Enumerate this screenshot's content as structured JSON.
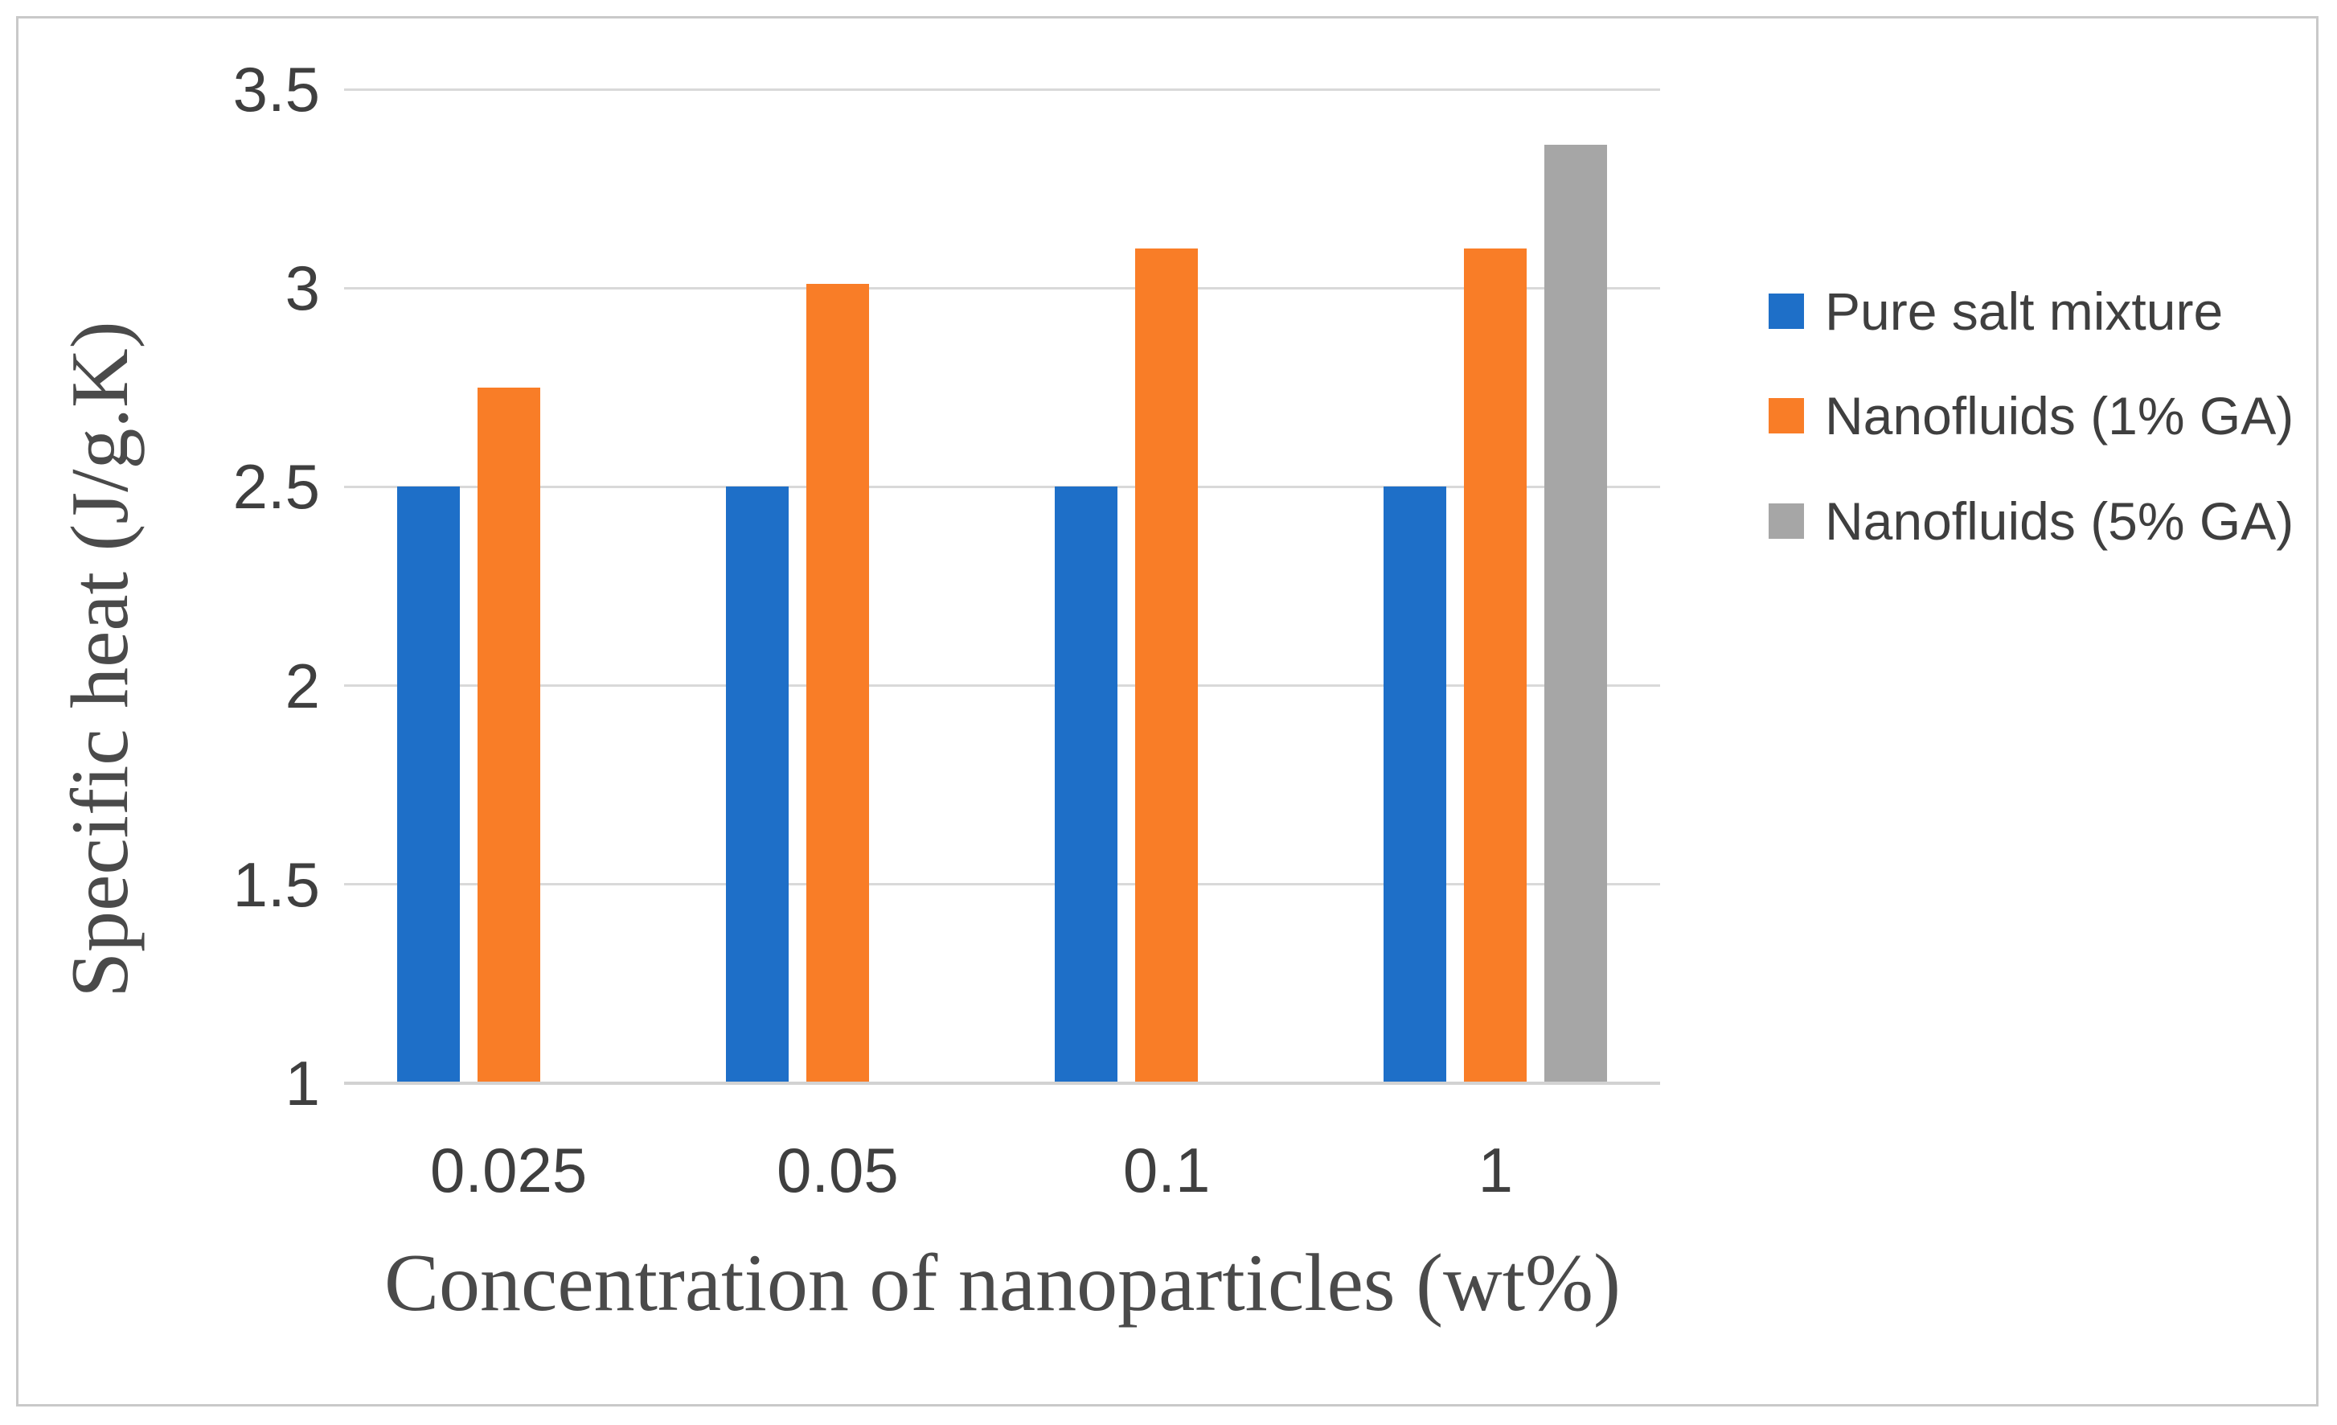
{
  "figure": {
    "background": "#ffffff",
    "frame_border_color": "#c9c9c9",
    "gridline_color": "#d9d9d9",
    "text_color": "#3f3f3f",
    "axis_title_color": "#4a4a4a"
  },
  "chart_data": {
    "type": "bar",
    "title": "",
    "xlabel": "Concentration of nanoparticles (wt%)",
    "ylabel": "Specific heat (J/g.K)",
    "categories": [
      "0.025",
      "0.05",
      "0.1",
      "1"
    ],
    "series": [
      {
        "name": "Pure salt mixture",
        "color": "#1e6fc8",
        "values": [
          2.5,
          2.5,
          2.5,
          2.5
        ]
      },
      {
        "name": "Nanofluids (1% GA)",
        "color": "#f97d27",
        "values": [
          2.75,
          3.01,
          3.1,
          3.1
        ]
      },
      {
        "name": "Nanofluids (5% GA)",
        "color": "#a6a6a6",
        "values": [
          null,
          null,
          null,
          3.36
        ]
      }
    ],
    "ylim": [
      1,
      3.5
    ],
    "yticks": [
      3.5,
      3,
      2.5,
      2,
      1.5,
      1
    ],
    "ytick_labels": [
      "3.5",
      "3",
      "2.5",
      "2",
      "1.5",
      "1"
    ],
    "grid": "horizontal",
    "legend_position": "right",
    "legend_marker": "square"
  }
}
